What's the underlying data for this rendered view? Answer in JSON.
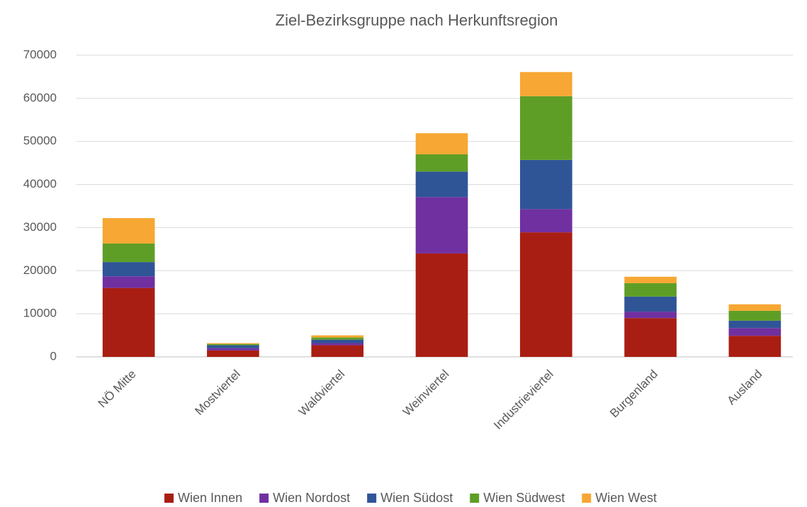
{
  "chart_data": {
    "type": "stacked_bar",
    "title": "Ziel-Bezirksgruppe nach Herkunftsregion",
    "categories": [
      "NÖ Mitte",
      "Mostviertel",
      "Waldviertel",
      "Weinviertel",
      "Industrieviertel",
      "Burgenland",
      "Ausland"
    ],
    "series": [
      {
        "name": "Wien Innen",
        "color": "#a91e12",
        "values": [
          16000,
          1500,
          2700,
          24000,
          28900,
          9000,
          4900
        ]
      },
      {
        "name": "Wien Nordost",
        "color": "#7030a0",
        "values": [
          2700,
          500,
          500,
          13100,
          5400,
          1500,
          1800
        ]
      },
      {
        "name": "Wien Südost",
        "color": "#2f5597",
        "values": [
          3300,
          700,
          800,
          5900,
          11400,
          3500,
          1700
        ]
      },
      {
        "name": "Wien Südwest",
        "color": "#5f9e26",
        "values": [
          4300,
          300,
          500,
          4000,
          14800,
          3100,
          2300
        ]
      },
      {
        "name": "Wien West",
        "color": "#f7a733",
        "values": [
          5900,
          200,
          500,
          4900,
          5600,
          1500,
          1500
        ]
      }
    ],
    "ylim": [
      0,
      70000
    ],
    "yticks": [
      0,
      10000,
      20000,
      30000,
      40000,
      50000,
      60000,
      70000
    ],
    "grid": true,
    "legend": "bottom"
  }
}
